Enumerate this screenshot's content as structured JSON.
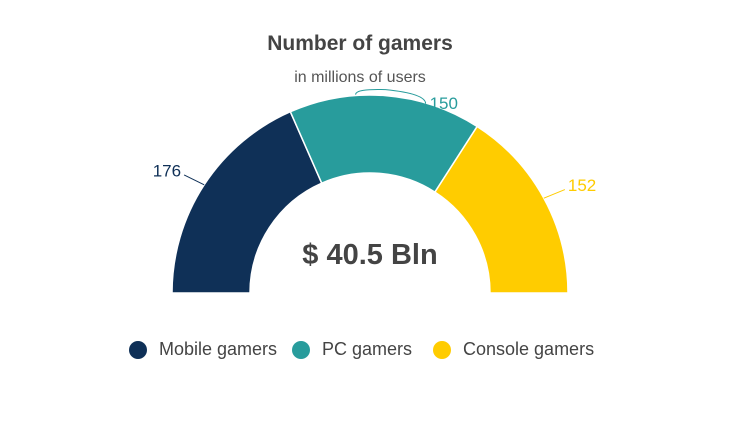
{
  "chart_data": {
    "type": "pie",
    "variant": "semi-donut",
    "title": "Number of gamers",
    "subtitle": "in millions of users",
    "center_label": "$ 40.5 Bln",
    "categories": [
      "Mobile gamers",
      "PC gamers",
      "Console gamers"
    ],
    "values": [
      176,
      150,
      152
    ],
    "colors": [
      "#0f3057",
      "#289c9c",
      "#ffcc00"
    ],
    "legend_position": "bottom"
  }
}
